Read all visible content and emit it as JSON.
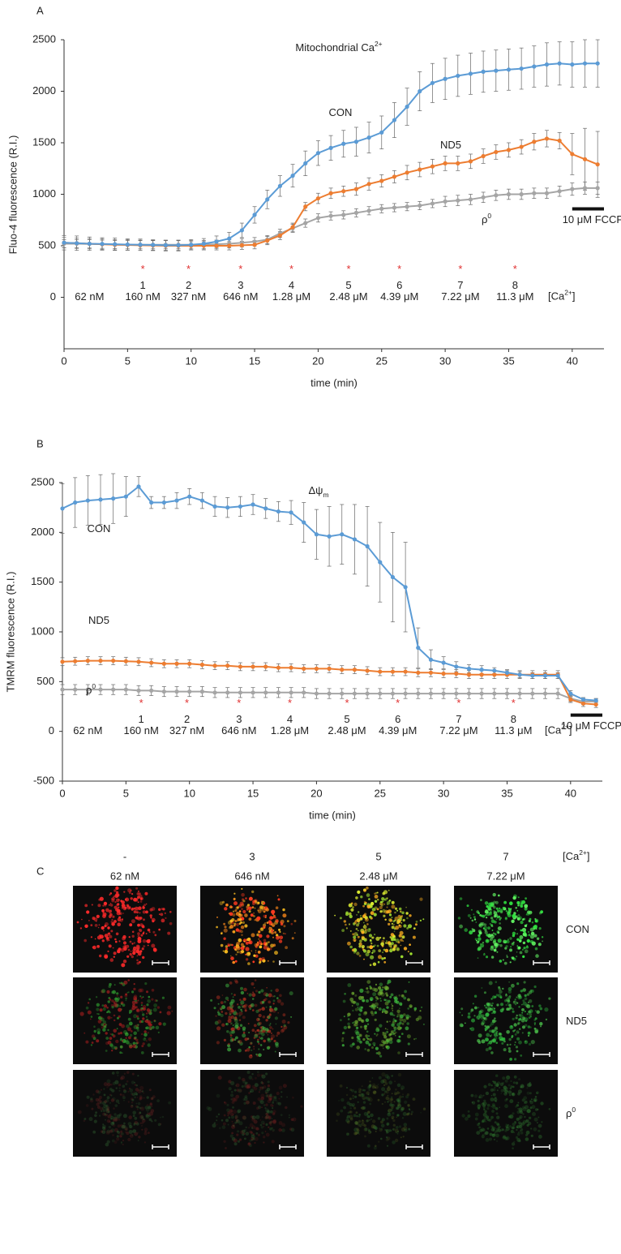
{
  "chart_data": [
    {
      "type": "line",
      "panel": "A",
      "title": "Mitochondrial Ca",
      "title_sup": "2+",
      "y_label": "Fluo-4 fluorescence (R.I.)",
      "x_label": "time (min)",
      "xlim": [
        0,
        42.5
      ],
      "xticks": [
        0,
        5,
        10,
        15,
        20,
        25,
        30,
        35,
        40
      ],
      "ylim": [
        -500,
        2500
      ],
      "yticks": [
        0,
        500,
        1000,
        1500,
        2000,
        2500
      ],
      "x": [
        0,
        1,
        2,
        3,
        4,
        5,
        6,
        7,
        8,
        9,
        10,
        11,
        12,
        13,
        14,
        15,
        16,
        17,
        18,
        19,
        20,
        21,
        22,
        23,
        24,
        25,
        26,
        27,
        28,
        29,
        30,
        31,
        32,
        33,
        34,
        35,
        36,
        37,
        38,
        39,
        40,
        41,
        42
      ],
      "series": [
        {
          "name": "CON",
          "color": "#5b9bd5",
          "values": [
            530,
            525,
            520,
            518,
            515,
            512,
            510,
            508,
            505,
            505,
            510,
            520,
            540,
            570,
            650,
            800,
            950,
            1080,
            1180,
            1300,
            1400,
            1450,
            1490,
            1510,
            1550,
            1600,
            1720,
            1850,
            2000,
            2080,
            2120,
            2150,
            2170,
            2190,
            2200,
            2210,
            2220,
            2240,
            2260,
            2270,
            2260,
            2270,
            2270
          ],
          "errors": [
            70,
            70,
            65,
            60,
            60,
            55,
            55,
            50,
            50,
            50,
            50,
            50,
            55,
            60,
            70,
            80,
            90,
            100,
            110,
            120,
            120,
            120,
            130,
            140,
            150,
            160,
            170,
            180,
            190,
            190,
            200,
            200,
            200,
            200,
            200,
            200,
            200,
            200,
            210,
            210,
            220,
            230,
            230
          ]
        },
        {
          "name": "ND5",
          "color": "#ed7d31",
          "values": [
            530,
            525,
            520,
            515,
            510,
            508,
            505,
            503,
            500,
            500,
            500,
            500,
            500,
            500,
            505,
            510,
            550,
            600,
            680,
            880,
            960,
            1010,
            1030,
            1050,
            1100,
            1130,
            1170,
            1210,
            1240,
            1270,
            1300,
            1300,
            1320,
            1370,
            1410,
            1430,
            1460,
            1510,
            1540,
            1520,
            1390,
            1340,
            1290
          ],
          "errors": [
            50,
            50,
            50,
            50,
            50,
            50,
            50,
            50,
            50,
            50,
            40,
            40,
            40,
            40,
            40,
            40,
            40,
            40,
            40,
            40,
            50,
            50,
            50,
            60,
            60,
            60,
            60,
            70,
            70,
            70,
            70,
            70,
            70,
            70,
            70,
            70,
            70,
            80,
            80,
            80,
            200,
            300,
            320
          ]
        },
        {
          "name": "ρ",
          "name_sup": "0",
          "color": "#a5a5a5",
          "values": [
            520,
            520,
            518,
            515,
            512,
            510,
            510,
            510,
            510,
            510,
            510,
            510,
            515,
            520,
            530,
            540,
            560,
            620,
            670,
            720,
            770,
            790,
            800,
            820,
            840,
            860,
            870,
            880,
            890,
            910,
            930,
            940,
            950,
            970,
            990,
            1000,
            1000,
            1010,
            1010,
            1030,
            1050,
            1060,
            1060
          ],
          "errors": [
            40,
            40,
            40,
            40,
            40,
            40,
            40,
            40,
            40,
            40,
            40,
            40,
            40,
            40,
            40,
            40,
            40,
            40,
            40,
            40,
            40,
            40,
            40,
            40,
            40,
            40,
            40,
            40,
            40,
            40,
            50,
            50,
            50,
            50,
            50,
            50,
            50,
            50,
            50,
            50,
            60,
            60,
            60
          ]
        }
      ],
      "stimulus_marker": "*",
      "stimuli": [
        {
          "time": 2,
          "conc": "62 nM"
        },
        {
          "time": 6.2,
          "step": "1",
          "conc": "160 nM"
        },
        {
          "time": 9.8,
          "step": "2",
          "conc": "327 nM"
        },
        {
          "time": 13.9,
          "step": "3",
          "conc": "646 nM"
        },
        {
          "time": 17.9,
          "step": "4",
          "conc": "1.28 μM"
        },
        {
          "time": 22.4,
          "step": "5",
          "conc": "2.48 μM"
        },
        {
          "time": 26.4,
          "step": "6",
          "conc": "4.39 μM"
        },
        {
          "time": 31.2,
          "step": "7",
          "conc": "7.22 μM"
        },
        {
          "time": 35.5,
          "step": "8",
          "conc": "11.3 μM"
        }
      ],
      "ion_prefix": "[Ca",
      "ion_sup": "2+",
      "ion_suffix": "]",
      "fccp": {
        "label": "10 μM FCCP",
        "start": 40,
        "end": 42.5
      }
    },
    {
      "type": "line",
      "panel": "B",
      "title": "Δψ",
      "title_sub": "m",
      "y_label": "TMRM fluorescence (R.I.)",
      "x_label": "time (min)",
      "xlim": [
        0,
        42.5
      ],
      "xticks": [
        0,
        5,
        10,
        15,
        20,
        25,
        30,
        35,
        40
      ],
      "ylim": [
        -500,
        2500
      ],
      "yticks": [
        -500,
        0,
        500,
        1000,
        1500,
        2000,
        2500
      ],
      "x": [
        0,
        1,
        2,
        3,
        4,
        5,
        6,
        7,
        8,
        9,
        10,
        11,
        12,
        13,
        14,
        15,
        16,
        17,
        18,
        19,
        20,
        21,
        22,
        23,
        24,
        25,
        26,
        27,
        28,
        29,
        30,
        31,
        32,
        33,
        34,
        35,
        36,
        37,
        38,
        39,
        40,
        41,
        42
      ],
      "series": [
        {
          "name": "CON",
          "color": "#5b9bd5",
          "values": [
            2240,
            2300,
            2320,
            2330,
            2340,
            2360,
            2460,
            2300,
            2300,
            2320,
            2360,
            2320,
            2260,
            2250,
            2260,
            2280,
            2240,
            2210,
            2200,
            2100,
            1980,
            1960,
            1980,
            1930,
            1860,
            1700,
            1550,
            1450,
            840,
            720,
            690,
            650,
            630,
            620,
            610,
            590,
            570,
            560,
            560,
            560,
            380,
            320,
            310
          ],
          "errors": [
            250,
            250,
            250,
            250,
            250,
            200,
            100,
            60,
            60,
            80,
            80,
            80,
            100,
            100,
            100,
            100,
            100,
            100,
            120,
            200,
            250,
            300,
            300,
            350,
            400,
            400,
            450,
            450,
            200,
            100,
            60,
            50,
            40,
            40,
            30,
            30,
            30,
            30,
            30,
            30,
            30,
            20,
            20
          ]
        },
        {
          "name": "ND5",
          "color": "#ed7d31",
          "values": [
            700,
            705,
            710,
            710,
            710,
            705,
            700,
            690,
            680,
            680,
            680,
            670,
            660,
            660,
            650,
            650,
            650,
            640,
            640,
            630,
            630,
            630,
            620,
            620,
            610,
            600,
            600,
            600,
            590,
            590,
            580,
            580,
            570,
            570,
            570,
            570,
            570,
            570,
            570,
            570,
            320,
            280,
            270
          ],
          "errors": [
            40,
            40,
            40,
            40,
            40,
            40,
            40,
            40,
            40,
            40,
            40,
            40,
            40,
            40,
            40,
            40,
            40,
            40,
            40,
            40,
            40,
            40,
            40,
            40,
            40,
            40,
            40,
            40,
            40,
            40,
            40,
            40,
            40,
            40,
            40,
            40,
            40,
            40,
            40,
            40,
            30,
            30,
            30
          ]
        },
        {
          "name": "ρ",
          "name_sup": "0",
          "color": "#a5a5a5",
          "values": [
            420,
            420,
            420,
            420,
            420,
            420,
            410,
            410,
            400,
            400,
            400,
            400,
            390,
            390,
            390,
            390,
            390,
            390,
            390,
            390,
            380,
            380,
            380,
            380,
            380,
            380,
            380,
            380,
            380,
            380,
            380,
            380,
            380,
            380,
            380,
            380,
            380,
            380,
            380,
            380,
            330,
            300,
            300
          ],
          "errors": [
            50,
            50,
            50,
            50,
            50,
            50,
            50,
            50,
            50,
            50,
            50,
            50,
            50,
            50,
            50,
            50,
            50,
            50,
            50,
            50,
            50,
            50,
            50,
            50,
            50,
            50,
            50,
            50,
            50,
            50,
            50,
            50,
            50,
            50,
            50,
            50,
            50,
            50,
            50,
            50,
            30,
            30,
            30
          ]
        }
      ],
      "stimulus_marker": "*",
      "stimuli": [
        {
          "time": 2,
          "conc": "62 nM"
        },
        {
          "time": 6.2,
          "step": "1",
          "conc": "160 nM"
        },
        {
          "time": 9.8,
          "step": "2",
          "conc": "327 nM"
        },
        {
          "time": 13.9,
          "step": "3",
          "conc": "646 nM"
        },
        {
          "time": 17.9,
          "step": "4",
          "conc": "1.28 μM"
        },
        {
          "time": 22.4,
          "step": "5",
          "conc": "2.48 μM"
        },
        {
          "time": 26.4,
          "step": "6",
          "conc": "4.39 μM"
        },
        {
          "time": 31.2,
          "step": "7",
          "conc": "7.22 μM"
        },
        {
          "time": 35.5,
          "step": "8",
          "conc": "11.3 μM"
        }
      ],
      "ion_prefix": "[Ca",
      "ion_sup": "2+",
      "ion_suffix": "]",
      "fccp": {
        "label": "10 μM FCCP",
        "start": 40,
        "end": 42.5
      }
    }
  ],
  "panel_c": {
    "panel": "C",
    "columns": [
      {
        "step": "-",
        "conc": "62 nM"
      },
      {
        "step": "3",
        "conc": "646 nM"
      },
      {
        "step": "5",
        "conc": "2.48 μM"
      },
      {
        "step": "7",
        "conc": "7.22 μM"
      }
    ],
    "ion_prefix": "[Ca",
    "ion_sup": "2+",
    "ion_suffix": "]",
    "rows": [
      {
        "name": "CON"
      },
      {
        "name": "ND5"
      },
      {
        "name": "ρ",
        "name_sup": "0"
      }
    ]
  }
}
